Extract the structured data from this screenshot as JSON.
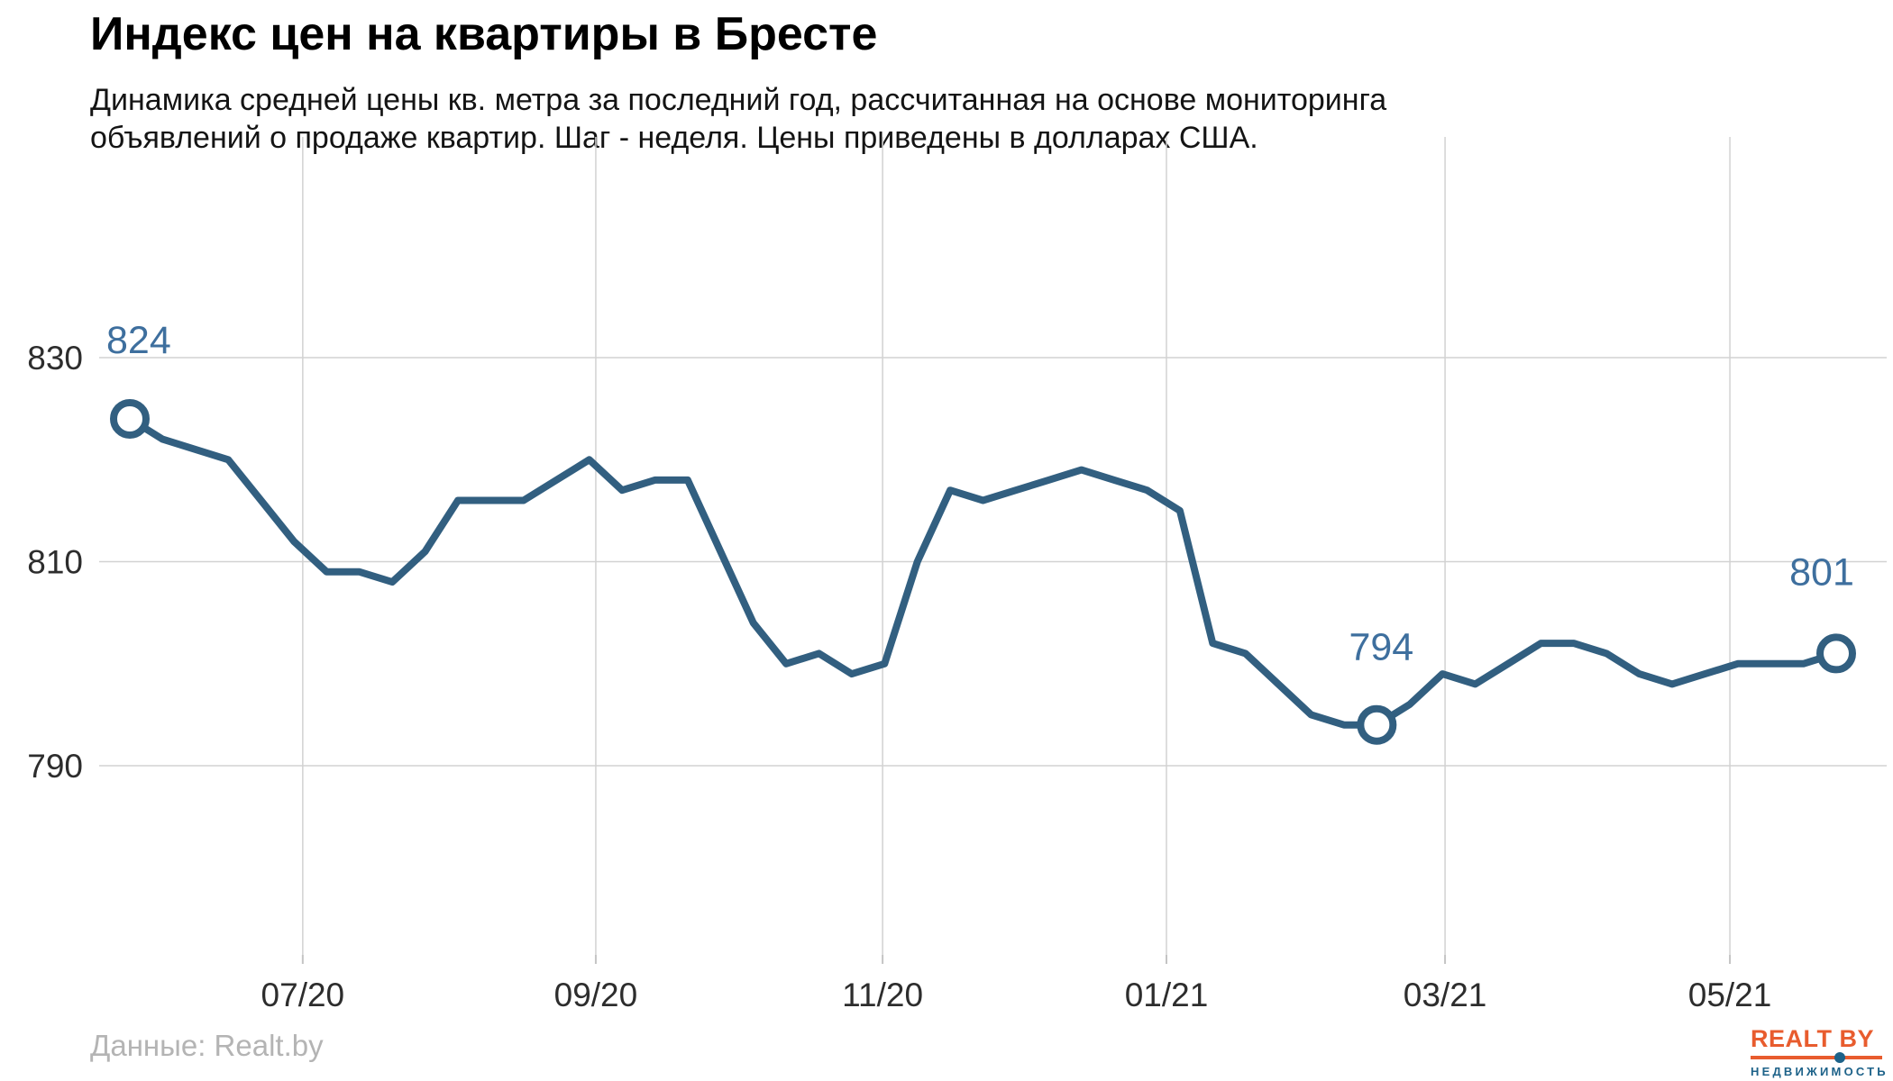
{
  "header": {
    "title": "Индекс цен на квартиры в Бресте",
    "subtitle_line1": "Динамика средней цены кв. метра за последний год, рассчитанная на основе мониторинга",
    "subtitle_line2": "объявлений о продаже квартир. Шаг - неделя. Цены приведены в долларах США."
  },
  "footer": {
    "source_label": "Данные: Realt.by",
    "logo": {
      "text": "REALT BY",
      "subtext": "НЕДВИЖИМОСТЬ",
      "orange": "#E85C2E",
      "blue": "#1D6289"
    }
  },
  "chart_data": {
    "type": "line",
    "title": "Индекс цен на квартиры в Бресте",
    "xlabel": "",
    "ylabel": "",
    "unit": "USD за кв. метр",
    "step": "неделя",
    "grid": true,
    "legend": false,
    "ylim": [
      771,
      852
    ],
    "y_ticks": [
      830,
      810,
      790
    ],
    "x_ticks": [
      {
        "label": "07/20",
        "week": 5.27
      },
      {
        "label": "09/20",
        "week": 14.2
      },
      {
        "label": "11/20",
        "week": 22.94
      },
      {
        "label": "01/21",
        "week": 31.59
      },
      {
        "label": "03/21",
        "week": 40.08
      },
      {
        "label": "05/21",
        "week": 48.76
      }
    ],
    "series": [
      {
        "name": "Средняя цена кв. метра, USD",
        "values": [
          824,
          822,
          821,
          820,
          816,
          812,
          809,
          809,
          808,
          811,
          816,
          816,
          816,
          818,
          820,
          817,
          818,
          818,
          811,
          804,
          800,
          801,
          799,
          800,
          810,
          817,
          816,
          817,
          818,
          819,
          818,
          817,
          815,
          802,
          801,
          798,
          795,
          794,
          794,
          796,
          799,
          798,
          800,
          802,
          802,
          801,
          799,
          798,
          799,
          800,
          800,
          800,
          801
        ]
      }
    ],
    "annotations": [
      {
        "week": 0,
        "value": 824,
        "label": "824"
      },
      {
        "week": 38,
        "value": 794,
        "label": "794"
      },
      {
        "week": 52,
        "value": 801,
        "label": "801"
      }
    ],
    "colors": {
      "line": "#325F80",
      "annotation_text": "#3E6F9E",
      "grid": "#D2D2D2",
      "tick": "#C4C4C4",
      "axis_text": "#2D2D2D",
      "background": "#FFFFFF"
    }
  }
}
